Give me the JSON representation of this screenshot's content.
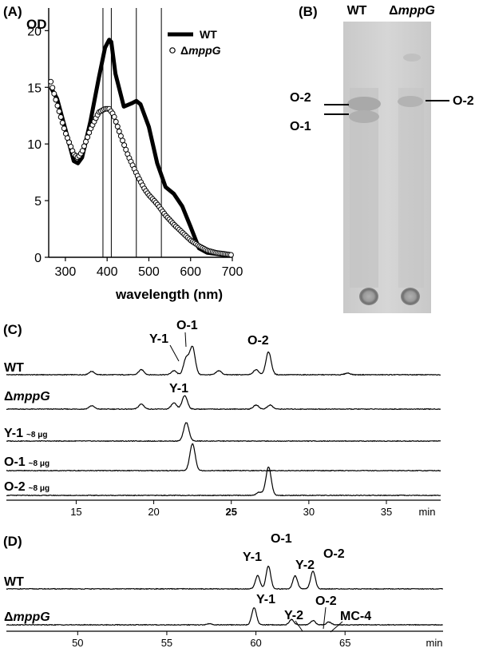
{
  "panels": {
    "a": {
      "label": "(A)",
      "ylabel": "OD",
      "xlabel": "wavelength (nm)",
      "legend": [
        {
          "prefix": "",
          "name": "WT",
          "style": "thick-line"
        },
        {
          "prefix": "Δ",
          "name": "mppG",
          "style": "open-circles"
        }
      ]
    },
    "b": {
      "label": "(B)",
      "lane_headers": [
        {
          "prefix": "",
          "name": "WT"
        },
        {
          "prefix": "Δ",
          "name": "mppG"
        }
      ],
      "left_labels": [
        "O-2",
        "O-1"
      ],
      "right_labels": [
        "O-2"
      ]
    },
    "c": {
      "label": "(C)",
      "axis_unit": "min",
      "traces": [
        {
          "prefix": "",
          "name": "WT",
          "sub": ""
        },
        {
          "prefix": "Δ",
          "name": "mppG",
          "sub": ""
        },
        {
          "prefix": "",
          "name": "Y-1",
          "sub": "~8 μg"
        },
        {
          "prefix": "",
          "name": "O-1",
          "sub": "~8 μg"
        },
        {
          "prefix": "",
          "name": "O-2",
          "sub": "~8 μg"
        }
      ],
      "peak_labels": [
        "Y-1",
        "O-1",
        "O-2",
        "Y-1"
      ]
    },
    "d": {
      "label": "(D)",
      "axis_unit": "min",
      "traces": [
        {
          "prefix": "",
          "name": "WT"
        },
        {
          "prefix": "Δ",
          "name": "mppG"
        }
      ],
      "peak_labels": [
        "Y-1",
        "O-1",
        "Y-2",
        "O-2",
        "Y-1",
        "Y-2",
        "O-2",
        "MC-4"
      ]
    }
  },
  "chart_data": [
    {
      "type": "line",
      "panel": "A",
      "title": "",
      "xlabel": "wavelength (nm)",
      "ylabel": "OD",
      "xlim": [
        260,
        700
      ],
      "ylim": [
        0,
        22
      ],
      "x_ticks": [
        300,
        400,
        500,
        600,
        700
      ],
      "y_ticks": [
        0,
        5,
        10,
        15,
        20
      ],
      "reference_lines_nm": [
        390,
        410,
        470,
        530
      ],
      "grid": false,
      "legend_position": "top-right",
      "series": [
        {
          "name": "WT",
          "x": [
            265,
            280,
            300,
            320,
            330,
            340,
            360,
            380,
            395,
            405,
            410,
            420,
            440,
            460,
            470,
            480,
            500,
            520,
            540,
            560,
            580,
            600,
            620,
            640,
            660,
            680,
            700
          ],
          "y": [
            15.0,
            14.0,
            11.3,
            8.5,
            8.3,
            8.8,
            12.0,
            15.8,
            18.5,
            19.2,
            19.0,
            16.2,
            13.3,
            13.6,
            13.8,
            13.5,
            11.5,
            8.3,
            6.2,
            5.6,
            4.5,
            2.7,
            0.8,
            0.4,
            0.3,
            0.2,
            0.2
          ]
        },
        {
          "name": "mppG",
          "x": [
            265,
            280,
            300,
            320,
            330,
            340,
            360,
            380,
            395,
            405,
            415,
            430,
            450,
            470,
            490,
            500,
            520,
            540,
            560,
            580,
            600,
            620,
            640,
            660,
            680,
            700
          ],
          "y": [
            15.5,
            13.5,
            11.0,
            9.1,
            8.8,
            9.3,
            11.3,
            12.8,
            13.1,
            13.1,
            12.6,
            11.0,
            9.0,
            7.4,
            6.0,
            5.5,
            4.7,
            3.7,
            2.9,
            2.2,
            1.5,
            1.0,
            0.6,
            0.4,
            0.3,
            0.2
          ]
        }
      ]
    },
    {
      "type": "line",
      "panel": "C",
      "title": "",
      "xlabel": "min",
      "xlim": [
        10.5,
        38.5
      ],
      "x_ticks": [
        15,
        20,
        25,
        30,
        35
      ],
      "series": [
        {
          "name": "WT",
          "peaks": [
            [
              16.0,
              0.1
            ],
            [
              19.2,
              0.15
            ],
            [
              21.3,
              0.12
            ],
            [
              22.1,
              0.5
            ],
            [
              22.5,
              0.82
            ],
            [
              24.2,
              0.12
            ],
            [
              26.6,
              0.15
            ],
            [
              27.4,
              0.68
            ],
            [
              32.5,
              0.05
            ]
          ]
        },
        {
          "name": "mppG",
          "peaks": [
            [
              16.0,
              0.1
            ],
            [
              19.2,
              0.15
            ],
            [
              21.3,
              0.18
            ],
            [
              22.0,
              0.4
            ],
            [
              26.6,
              0.12
            ],
            [
              27.5,
              0.12
            ]
          ]
        },
        {
          "name": "Y-1",
          "peaks": [
            [
              22.1,
              0.55
            ]
          ]
        },
        {
          "name": "O-1",
          "peaks": [
            [
              22.5,
              0.8
            ]
          ]
        },
        {
          "name": "O-2",
          "peaks": [
            [
              26.8,
              0.1
            ],
            [
              27.4,
              0.85
            ]
          ]
        }
      ]
    },
    {
      "type": "line",
      "panel": "D",
      "title": "",
      "xlabel": "min",
      "xlim": [
        46,
        70.5
      ],
      "x_ticks": [
        50,
        55,
        60,
        65
      ],
      "series": [
        {
          "name": "WT",
          "peaks": [
            [
              60.1,
              0.55
            ],
            [
              60.7,
              0.95
            ],
            [
              62.2,
              0.55
            ],
            [
              63.2,
              0.75
            ]
          ]
        },
        {
          "name": "mppG",
          "peaks": [
            [
              57.4,
              0.05
            ],
            [
              59.9,
              0.72
            ],
            [
              62.0,
              0.22
            ],
            [
              63.2,
              0.18
            ],
            [
              64.1,
              0.12
            ]
          ]
        }
      ]
    }
  ]
}
